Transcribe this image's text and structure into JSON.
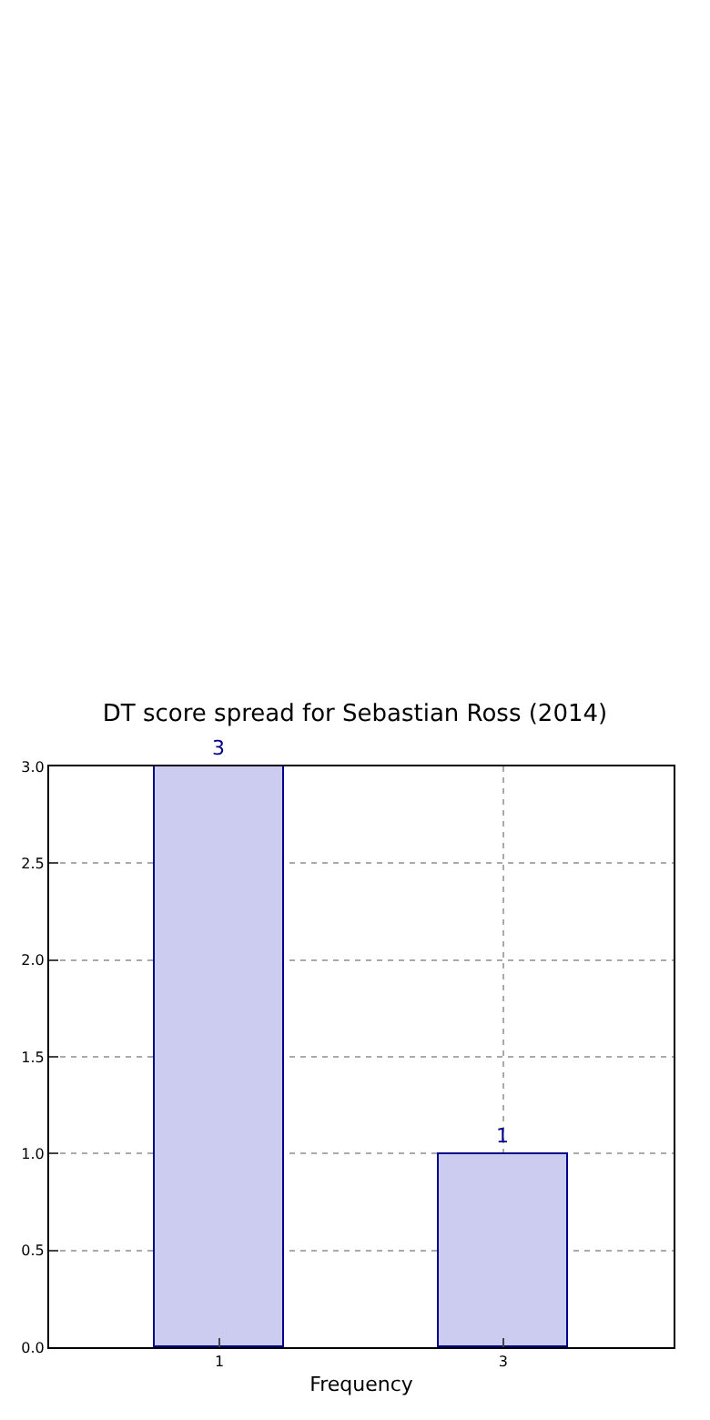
{
  "chart_data": {
    "type": "bar",
    "title": "DT score spread for Sebastian Ross (2014)",
    "xlabel": "Frequency",
    "categories": [
      "1",
      "3"
    ],
    "values": [
      3,
      1
    ],
    "color": "#ccccf0",
    "ylim": [
      0,
      3
    ],
    "yticks": [
      {
        "value": 0,
        "label": "0.0"
      },
      {
        "value": 0.5,
        "label": "0.5"
      },
      {
        "value": 1,
        "label": "1.0"
      },
      {
        "value": 1.5,
        "label": "1.5"
      },
      {
        "value": 2,
        "label": "2.0"
      },
      {
        "value": 2.5,
        "label": "2.5"
      },
      {
        "value": 3,
        "label": "3.0"
      }
    ],
    "grid": true,
    "data_labels": true
  }
}
